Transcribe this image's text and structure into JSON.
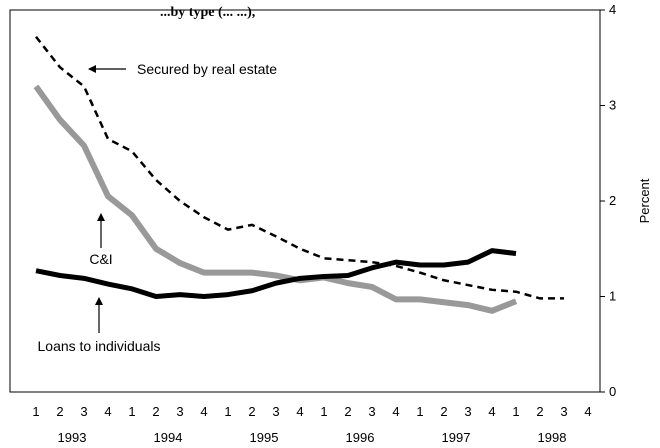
{
  "chart_data": {
    "type": "line",
    "title": "...by type (... ...),",
    "ylabel": "Percent",
    "ylim": [
      0,
      4
    ],
    "yticks": [
      0,
      1,
      2,
      3,
      4
    ],
    "quarter_labels": [
      "1",
      "2",
      "3",
      "4",
      "1",
      "2",
      "3",
      "4",
      "1",
      "2",
      "3",
      "4",
      "1",
      "2",
      "3",
      "4",
      "1",
      "2",
      "3",
      "4",
      "1",
      "2",
      "3",
      "4"
    ],
    "years": [
      "1993",
      "1994",
      "1995",
      "1996",
      "1997",
      "1998"
    ],
    "series": [
      {
        "name": "Secured by real estate",
        "color": "#000000",
        "style": "dashed",
        "values": [
          3.72,
          3.4,
          3.2,
          2.65,
          2.52,
          2.22,
          2.0,
          1.83,
          1.7,
          1.75,
          1.63,
          1.5,
          1.4,
          1.38,
          1.36,
          1.32,
          1.25,
          1.17,
          1.12,
          1.07,
          1.05,
          0.98,
          0.98
        ]
      },
      {
        "name": "C&I",
        "color": "#999999",
        "style": "solid",
        "values": [
          3.2,
          2.85,
          2.58,
          2.05,
          1.85,
          1.5,
          1.35,
          1.25,
          1.25,
          1.25,
          1.22,
          1.17,
          1.2,
          1.14,
          1.1,
          0.97,
          0.97,
          0.94,
          0.91,
          0.85,
          0.95
        ]
      },
      {
        "name": "Loans to individuals",
        "color": "#000000",
        "style": "solid",
        "values": [
          1.27,
          1.22,
          1.19,
          1.13,
          1.08,
          1.0,
          1.02,
          1.0,
          1.02,
          1.06,
          1.14,
          1.19,
          1.21,
          1.22,
          1.3,
          1.36,
          1.33,
          1.33,
          1.36,
          1.48,
          1.45
        ]
      }
    ],
    "annotations": [
      {
        "text": "Secured by real estate",
        "series": "Secured by real estate"
      },
      {
        "text": "C&I",
        "series": "C&I"
      },
      {
        "text": "Loans to individuals",
        "series": "Loans to individuals"
      }
    ],
    "grid": false,
    "legend": "none"
  }
}
